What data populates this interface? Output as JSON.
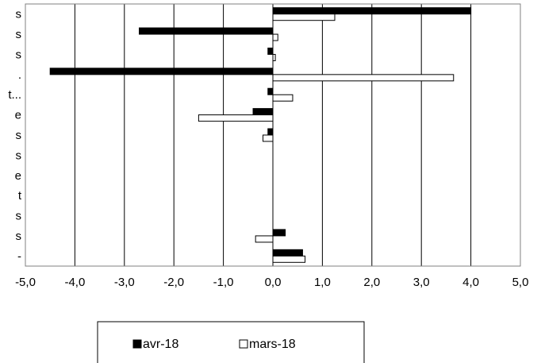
{
  "chart_data": {
    "type": "bar",
    "orientation": "horizontal",
    "categories": [
      "s",
      "s",
      "s",
      ".",
      "t...",
      "e",
      "s",
      "s",
      "e",
      "t",
      "s",
      "s",
      "-"
    ],
    "series": [
      {
        "name": "avr-18",
        "color": "#000000",
        "values": [
          4.0,
          -2.7,
          -0.1,
          -4.5,
          -0.1,
          -0.4,
          -0.1,
          0,
          0,
          0,
          0,
          0.25,
          0.6
        ]
      },
      {
        "name": "mars-18",
        "color": "#ffffff",
        "values": [
          1.25,
          0.1,
          0.05,
          3.65,
          0.4,
          -1.5,
          -0.2,
          0,
          0,
          0,
          0,
          -0.35,
          0.65
        ]
      }
    ],
    "xlim": [
      -5.0,
      5.0
    ],
    "xticks": [
      "-5,0",
      "-4,0",
      "-3,0",
      "-2,0",
      "-1,0",
      "0,0",
      "1,0",
      "2,0",
      "3,0",
      "4,0",
      "5,0"
    ],
    "grid": "vertical",
    "legend_position": "bottom",
    "title": "",
    "xlabel": "",
    "ylabel": ""
  }
}
